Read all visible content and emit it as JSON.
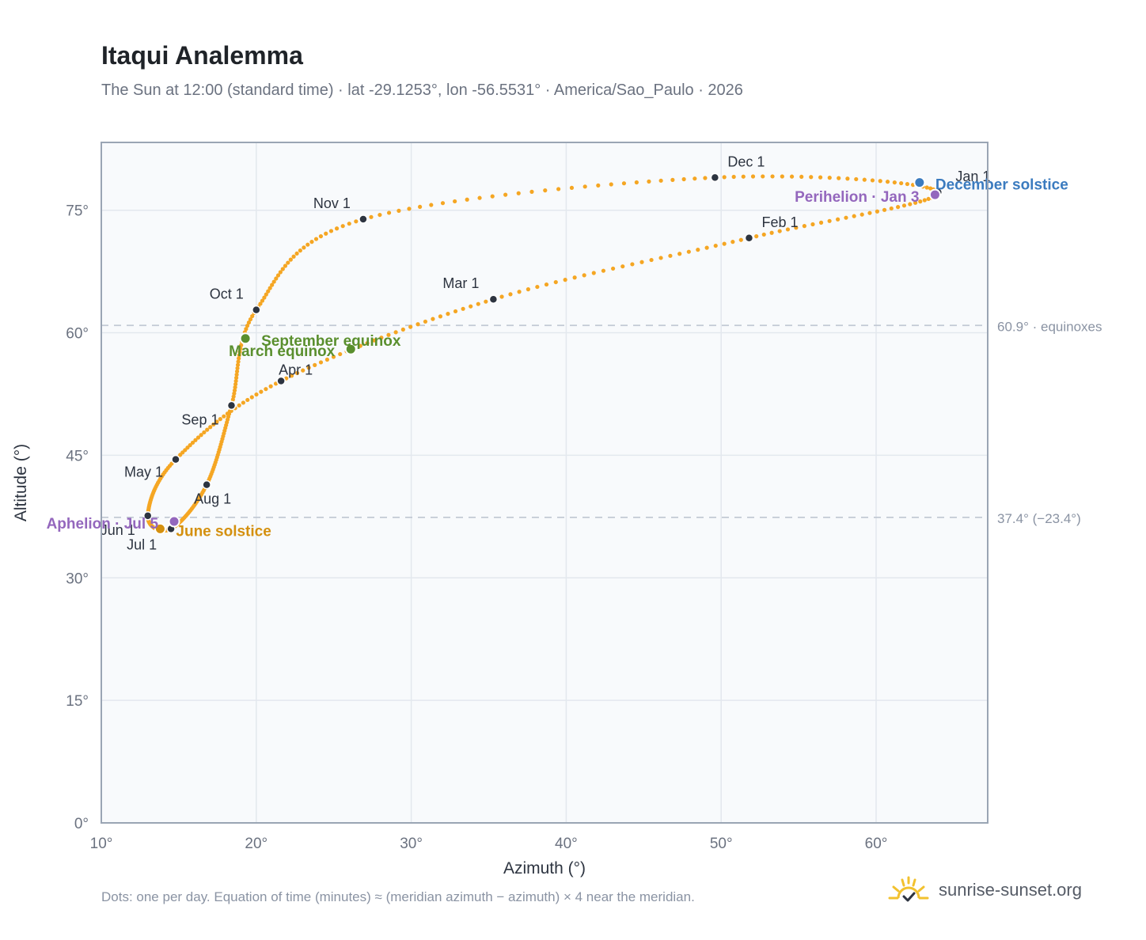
{
  "title": "Itaqui Analemma",
  "subtitle": "The Sun at 12:00 (standard time) · lat -29.1253°, lon -56.5531° · America/Sao_Paulo · 2026",
  "footnote": "Dots: one per day. Equation of time (minutes) ≈ (meridian azimuth − azimuth) × 4 near the meridian.",
  "brand": {
    "text": "sunrise-sunset.org",
    "logo_icon": "sun-check-icon"
  },
  "colors": {
    "path": "#f5a623",
    "month_dot": "#2d3440",
    "equinox": "#5a8f2e",
    "june_solstice": "#d4900f",
    "december_solstice": "#3b7bbf",
    "apsis": "#9467bd",
    "plot_bg": "#f8fafc",
    "grid": "#e3e8ee",
    "frame": "#9aa5b4"
  },
  "chart_data": {
    "type": "scatter",
    "title": "Itaqui Analemma",
    "xlabel": "Azimuth (°)",
    "ylabel": "Altitude (°)",
    "xlim": [
      10,
      67.2
    ],
    "ylim": [
      0,
      83.3
    ],
    "x_ticks": [
      10,
      20,
      30,
      40,
      50,
      60
    ],
    "x_tick_labels": [
      "10°",
      "20°",
      "30°",
      "40°",
      "50°",
      "60°"
    ],
    "y_ticks": [
      0,
      15,
      30,
      45,
      60,
      75
    ],
    "y_tick_labels": [
      "0°",
      "15°",
      "30°",
      "45°",
      "60°",
      "75°"
    ],
    "grid": true,
    "reference_lines": [
      {
        "y": 60.9,
        "label": "60.9° · equinoxes"
      },
      {
        "y": 37.4,
        "label": "37.4° (−23.4°)"
      }
    ],
    "month_points": [
      {
        "label": "Jan 1",
        "az": 64.0,
        "alt": 77.2
      },
      {
        "label": "Feb 1",
        "az": 51.8,
        "alt": 71.6
      },
      {
        "label": "Mar 1",
        "az": 35.3,
        "alt": 64.1
      },
      {
        "label": "Apr 1",
        "az": 21.6,
        "alt": 54.1
      },
      {
        "label": "May 1",
        "az": 14.8,
        "alt": 44.5
      },
      {
        "label": "Jun 1",
        "az": 13.0,
        "alt": 37.6
      },
      {
        "label": "Jul 1",
        "az": 14.5,
        "alt": 36.0
      },
      {
        "label": "Aug 1",
        "az": 16.8,
        "alt": 41.4
      },
      {
        "label": "Sep 1",
        "az": 18.4,
        "alt": 51.1
      },
      {
        "label": "Oct 1",
        "az": 20.0,
        "alt": 62.8
      },
      {
        "label": "Nov 1",
        "az": 26.9,
        "alt": 73.9
      },
      {
        "label": "Dec 1",
        "az": 49.6,
        "alt": 79.0
      }
    ],
    "events": [
      {
        "label": "March equinox",
        "az": 26.1,
        "alt": 58.0,
        "kind": "equinox"
      },
      {
        "label": "September equinox",
        "az": 19.3,
        "alt": 59.3,
        "kind": "equinox"
      },
      {
        "label": "June solstice",
        "az": 13.8,
        "alt": 36.0,
        "kind": "june_solstice"
      },
      {
        "label": "December solstice",
        "az": 62.8,
        "alt": 78.4,
        "kind": "december_solstice"
      },
      {
        "label": "Aphelion · Jul 5",
        "az": 14.7,
        "alt": 36.9,
        "kind": "apsis"
      },
      {
        "label": "Perihelion · Jan 3",
        "az": 63.8,
        "alt": 76.9,
        "kind": "apsis"
      }
    ]
  }
}
